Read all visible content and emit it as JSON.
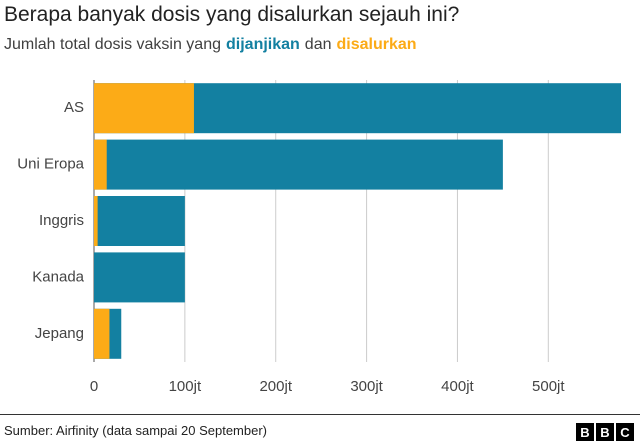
{
  "chart_data": {
    "type": "overlap-bar",
    "title": "Berapa banyak dosis yang disalurkan sejauh ini?",
    "subtitle": {
      "before": "Jumlah total dosis vaksin yang",
      "between": "dan"
    },
    "categories": [
      "AS",
      "Uni Eropa",
      "Inggris",
      "Kanada",
      "Jepang"
    ],
    "series": [
      {
        "name": "dijanjikan",
        "color": "#1380a1",
        "values": [
          580,
          450,
          100,
          100,
          30
        ]
      },
      {
        "name": "disalurkan",
        "color": "#fcab17",
        "values": [
          110,
          14,
          4,
          0,
          17
        ]
      }
    ],
    "xlim": [
      0,
      580
    ],
    "xticks": [
      0,
      {
        "value": 100,
        "label": "100jt"
      },
      {
        "value": 200,
        "label": "200jt"
      },
      {
        "value": 300,
        "label": "300jt"
      },
      {
        "value": 400,
        "label": "400jt"
      },
      {
        "value": 500,
        "label": "500jt"
      }
    ],
    "grid": true
  },
  "footer": {
    "source": "Sumber: Airfinity (data sampai 20 September)",
    "logo": [
      "B",
      "B",
      "C"
    ]
  }
}
